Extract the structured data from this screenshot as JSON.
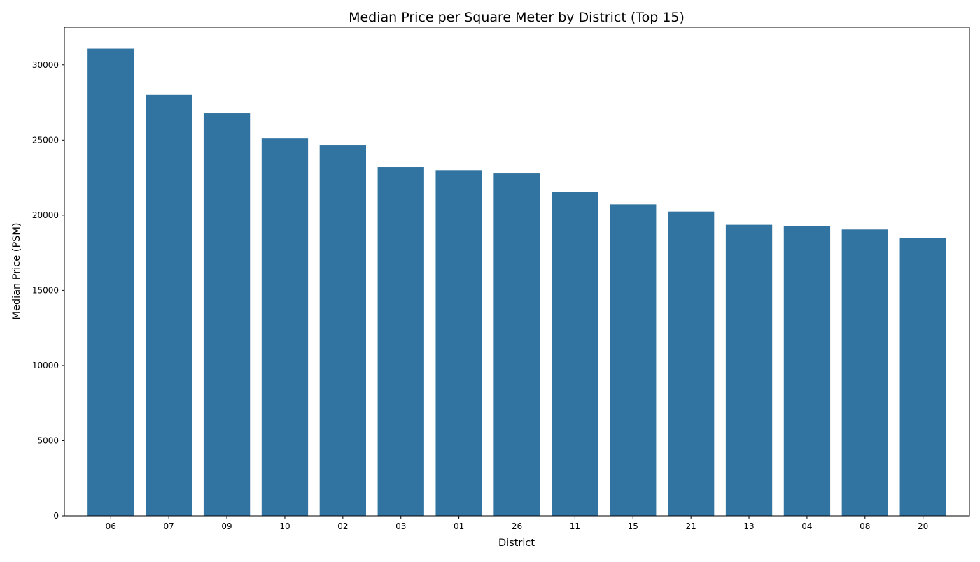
{
  "chart_data": {
    "type": "bar",
    "title": "Median Price per Square Meter by District (Top 15)",
    "xlabel": "District",
    "ylabel": "Median Price (PSM)",
    "categories": [
      "06",
      "07",
      "09",
      "10",
      "02",
      "03",
      "01",
      "26",
      "11",
      "15",
      "21",
      "13",
      "04",
      "08",
      "20"
    ],
    "values": [
      31080,
      28000,
      26780,
      25100,
      24640,
      23200,
      23000,
      22780,
      21560,
      20720,
      20240,
      19360,
      19260,
      19050,
      18470
    ],
    "ylim": [
      0,
      32500
    ],
    "yticks": [
      0,
      5000,
      10000,
      15000,
      20000,
      25000,
      30000
    ],
    "grid": false,
    "colors": {
      "bar": "#3274a1",
      "frame": "#000000"
    }
  }
}
